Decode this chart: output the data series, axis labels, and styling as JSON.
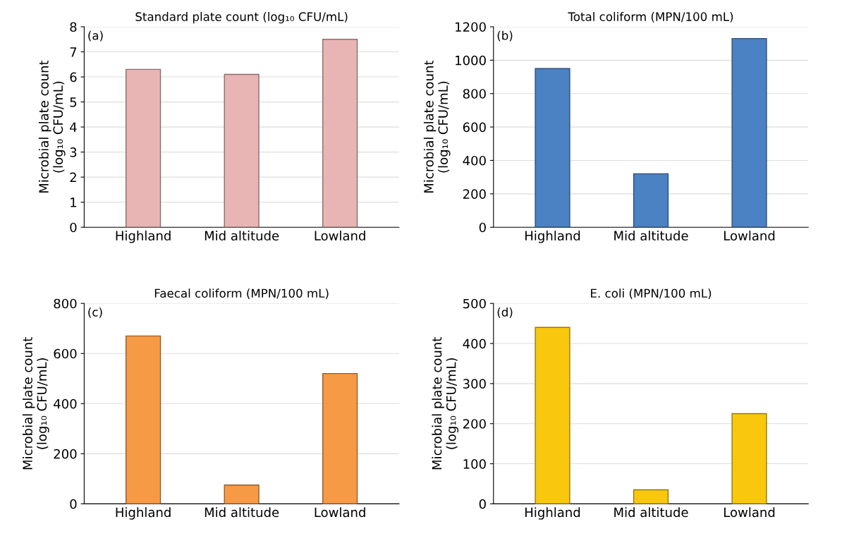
{
  "chart_data": [
    {
      "type": "bar",
      "title": "Standard plate count (log₁₀ CFU/mL)",
      "ylabel": "Microbial plate count\n(log₁₀ CFU/mL)",
      "categories": [
        "Highland",
        "Mid altitude",
        "Lowland"
      ],
      "values": [
        6.3,
        6.1,
        7.5
      ],
      "color": "#e8b4b4",
      "ylim": [
        0,
        8
      ],
      "yticks": [
        0,
        1,
        2,
        3,
        4,
        5,
        6,
        7,
        8
      ],
      "grid": "y",
      "annotations": [
        "(a)"
      ]
    },
    {
      "type": "bar",
      "title": "Total coliform (MPN/100 mL)",
      "ylabel": "Microbial plate count\n(log₁₀ CFU/mL)",
      "categories": [
        "Highland",
        "Mid altitude",
        "Lowland"
      ],
      "values": [
        950,
        320,
        1130
      ],
      "color": "#4a82c4",
      "ylim": [
        0,
        1200
      ],
      "yticks": [
        0,
        200,
        400,
        600,
        800,
        1000,
        1200
      ],
      "grid": "y",
      "annotations": [
        "(b)"
      ]
    },
    {
      "type": "bar",
      "title": "Faecal coliform (MPN/100 mL)",
      "ylabel": "Microbial plate count\n(log₁₀ CFU/mL)",
      "categories": [
        "Highland",
        "Mid altitude",
        "Lowland"
      ],
      "values": [
        670,
        75,
        520
      ],
      "color": "#f79a45",
      "ylim": [
        0,
        800
      ],
      "yticks": [
        0,
        200,
        400,
        600,
        800
      ],
      "grid": "y",
      "annotations": [
        "(c)"
      ]
    },
    {
      "type": "bar",
      "title": "E. coli (MPN/100 mL)",
      "ylabel": "Microbial plate count\n(log₁₀ CFU/mL)",
      "categories": [
        "Highland",
        "Mid altitude",
        "Lowland"
      ],
      "values": [
        440,
        35,
        225
      ],
      "color": "#f9c80e",
      "ylim": [
        0,
        500
      ],
      "yticks": [
        0,
        100,
        200,
        300,
        400,
        500
      ],
      "grid": "y",
      "annotations": [
        "(d)"
      ]
    }
  ]
}
